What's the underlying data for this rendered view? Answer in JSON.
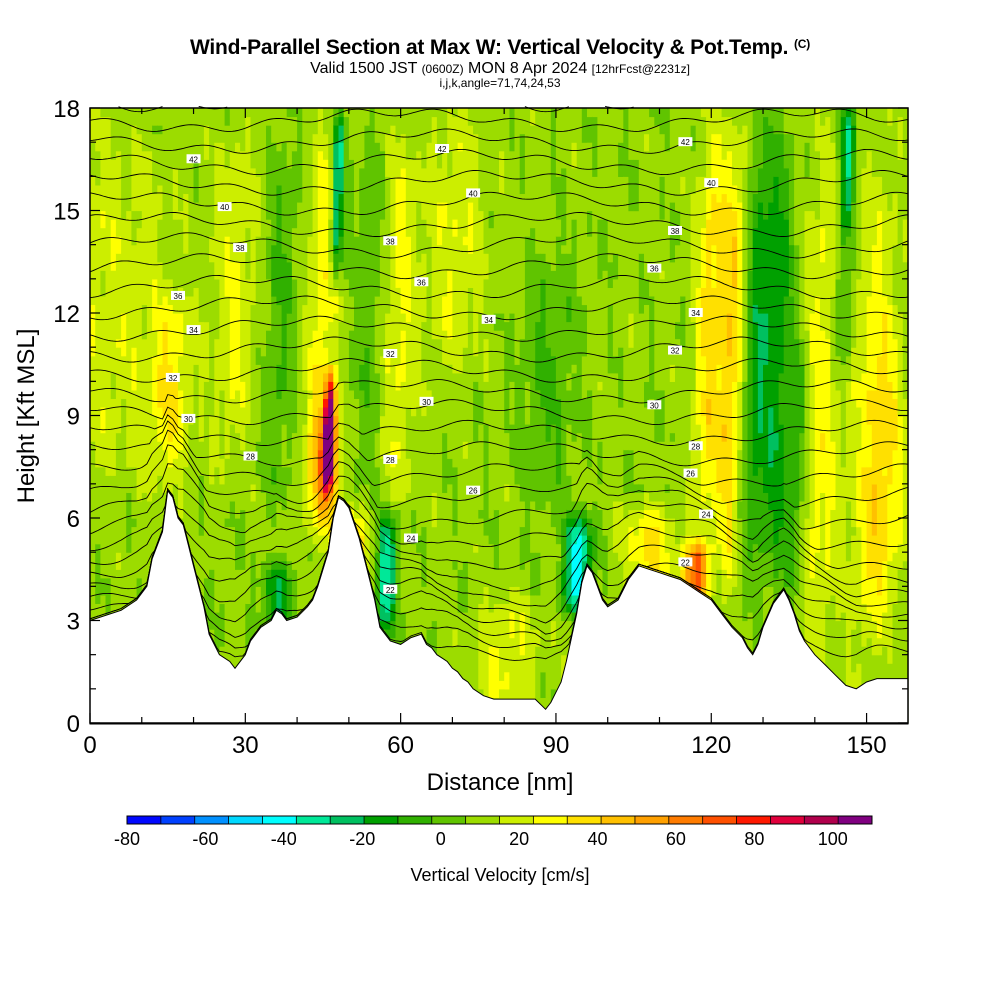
{
  "title": {
    "main": "Wind-Parallel Section at Max W: Vertical Velocity & Pot.Temp.",
    "copyright": "(C)",
    "valid_prefix": "Valid 1500 JST",
    "valid_zulu": "(0600Z)",
    "valid_date": "MON 8 Apr 2024",
    "forecast_note": "[12hrFcst@2231z]",
    "indices": "i,j,k,angle=71,74,24,53"
  },
  "chart_data": {
    "type": "heatmap",
    "xlabel": "Distance [nm]",
    "ylabel": "Height [Kft MSL]",
    "xlim": [
      0,
      158
    ],
    "ylim": [
      0,
      18
    ],
    "xticks": [
      "0",
      "30",
      "60",
      "90",
      "120",
      "150"
    ],
    "yticks": [
      "0",
      "3",
      "6",
      "9",
      "12",
      "15",
      "18"
    ],
    "terrain": {
      "x": [
        0,
        6,
        9,
        11,
        12,
        14,
        15,
        16,
        17,
        18,
        19,
        20,
        21,
        22,
        23,
        25,
        27,
        28,
        30,
        31,
        33,
        35,
        36,
        37,
        38,
        40,
        42,
        43,
        44,
        45,
        46,
        47,
        48,
        49,
        50,
        52,
        53,
        54,
        55,
        56,
        58,
        60,
        62,
        64,
        65,
        66,
        67,
        68,
        69,
        70,
        71,
        72,
        73,
        74,
        76,
        78,
        82,
        86,
        88,
        89,
        90,
        91,
        92,
        93,
        94,
        95,
        96,
        97,
        98,
        99,
        100,
        102,
        103,
        104,
        105,
        106,
        108,
        110,
        112,
        114,
        116,
        118,
        120,
        122,
        124,
        126,
        127,
        128,
        129,
        130,
        132,
        134,
        135,
        136,
        137,
        138,
        140,
        142,
        144,
        146,
        148,
        150,
        152,
        154,
        156,
        158
      ],
      "y": [
        3.0,
        3.3,
        3.6,
        4.0,
        4.8,
        5.6,
        6.8,
        6.6,
        6.0,
        5.8,
        5.2,
        4.6,
        4.0,
        3.4,
        2.6,
        2.0,
        1.8,
        1.6,
        2.0,
        2.4,
        2.8,
        3.0,
        3.3,
        3.2,
        3.0,
        3.1,
        3.4,
        3.6,
        4.0,
        4.5,
        5.0,
        6.0,
        6.6,
        6.5,
        6.3,
        5.4,
        4.8,
        4.2,
        3.6,
        2.8,
        2.4,
        2.3,
        2.5,
        2.6,
        2.3,
        2.2,
        2.0,
        1.9,
        1.8,
        1.6,
        1.5,
        1.3,
        1.2,
        1.0,
        0.8,
        0.7,
        0.7,
        0.7,
        0.4,
        0.6,
        0.9,
        1.2,
        1.8,
        2.5,
        3.2,
        4.1,
        4.6,
        4.4,
        4.0,
        3.6,
        3.4,
        3.6,
        3.9,
        4.2,
        4.4,
        4.6,
        4.5,
        4.4,
        4.3,
        4.2,
        4.0,
        3.8,
        3.6,
        3.2,
        2.8,
        2.5,
        2.2,
        2.0,
        2.3,
        2.8,
        3.5,
        3.9,
        3.6,
        3.2,
        2.7,
        2.4,
        2.0,
        1.7,
        1.4,
        1.1,
        1.0,
        1.2,
        1.3,
        1.3,
        1.3,
        1.3
      ]
    },
    "updrafts": [
      {
        "x": 2,
        "w": 13,
        "vmax": 12,
        "bot": 6.5,
        "top": 18
      },
      {
        "x": 15,
        "w": 4,
        "vmax": 20,
        "bot": 7,
        "top": 12.5
      },
      {
        "x": 27,
        "w": 4,
        "vmax": 14,
        "bot": 7,
        "top": 18
      },
      {
        "x": 46,
        "w": 1.1,
        "vmax": 90,
        "bot": 7,
        "top": 10
      },
      {
        "x": 45,
        "w": 3,
        "vmax": 35,
        "bot": 5.5,
        "top": 9
      },
      {
        "x": 44,
        "w": 3,
        "vmax": 22,
        "bot": 6,
        "top": 18
      },
      {
        "x": 50,
        "w": 3,
        "vmax": 35,
        "bot": 3,
        "top": 6
      },
      {
        "x": 58,
        "w": 4,
        "vmax": 20,
        "bot": 6,
        "top": 18
      },
      {
        "x": 80,
        "w": 6,
        "vmax": 16,
        "bot": 0.5,
        "top": 3.5
      },
      {
        "x": 70,
        "w": 6,
        "vmax": 14,
        "bot": 10,
        "top": 18
      },
      {
        "x": 108,
        "w": 5,
        "vmax": 24,
        "bot": 3.8,
        "top": 6.2
      },
      {
        "x": 117,
        "w": 2.5,
        "vmax": 58,
        "bot": 3.6,
        "top": 5
      },
      {
        "x": 119,
        "w": 3,
        "vmax": 28,
        "bot": 5,
        "top": 18
      },
      {
        "x": 123,
        "w": 2.2,
        "vmax": 28,
        "bot": 3,
        "top": 18
      },
      {
        "x": 140,
        "w": 4,
        "vmax": 18,
        "bot": 0,
        "top": 18
      },
      {
        "x": 150,
        "w": 4,
        "vmax": 16,
        "bot": 0,
        "top": 18
      },
      {
        "x": 153,
        "w": 4,
        "vmax": 18,
        "bot": 3,
        "top": 12
      }
    ],
    "downdrafts": [
      {
        "x": 47.5,
        "w": 1.2,
        "vmax": -45,
        "bot": 13,
        "top": 18
      },
      {
        "x": 57,
        "w": 1.8,
        "vmax": -45,
        "bot": 2.8,
        "top": 6
      },
      {
        "x": 94,
        "w": 2.5,
        "vmax": -55,
        "bot": 3.5,
        "top": 5.8
      },
      {
        "x": 146,
        "w": 1.5,
        "vmax": -40,
        "bot": 14.5,
        "top": 18
      },
      {
        "x": 36,
        "w": 3,
        "vmax": -28,
        "bot": 3,
        "top": 4.3
      },
      {
        "x": 36,
        "w": 3,
        "vmax": -12,
        "bot": 6,
        "top": 18
      },
      {
        "x": 54,
        "w": 4,
        "vmax": -14,
        "bot": 6,
        "top": 18
      },
      {
        "x": 88,
        "w": 5,
        "vmax": -12,
        "bot": 6,
        "top": 14
      },
      {
        "x": 128,
        "w": 3,
        "vmax": -25,
        "bot": 4,
        "top": 18
      },
      {
        "x": 132,
        "w": 2.5,
        "vmax": -22,
        "bot": 3,
        "top": 18
      },
      {
        "x": 136,
        "w": 2,
        "vmax": -18,
        "bot": 3,
        "top": 12
      },
      {
        "x": 145,
        "w": 2,
        "vmax": -20,
        "bot": 10,
        "top": 14.5
      }
    ],
    "isentropes": {
      "levels": [
        22,
        24,
        26,
        28,
        30,
        32,
        34,
        36,
        38,
        40,
        42
      ],
      "labels": [
        {
          "text": "42",
          "x": 20,
          "y": 16.5
        },
        {
          "text": "42",
          "x": 68,
          "y": 16.8
        },
        {
          "text": "42",
          "x": 115,
          "y": 17.0
        },
        {
          "text": "40",
          "x": 26,
          "y": 15.1
        },
        {
          "text": "40",
          "x": 74,
          "y": 15.5
        },
        {
          "text": "40",
          "x": 120,
          "y": 15.8
        },
        {
          "text": "38",
          "x": 29,
          "y": 13.9
        },
        {
          "text": "38",
          "x": 58,
          "y": 14.1
        },
        {
          "text": "38",
          "x": 113,
          "y": 14.4
        },
        {
          "text": "36",
          "x": 17,
          "y": 12.5
        },
        {
          "text": "36",
          "x": 64,
          "y": 12.9
        },
        {
          "text": "36",
          "x": 109,
          "y": 13.3
        },
        {
          "text": "34",
          "x": 20,
          "y": 11.5
        },
        {
          "text": "34",
          "x": 77,
          "y": 11.8
        },
        {
          "text": "34",
          "x": 117,
          "y": 12.0
        },
        {
          "text": "32",
          "x": 16,
          "y": 10.1
        },
        {
          "text": "32",
          "x": 58,
          "y": 10.8
        },
        {
          "text": "32",
          "x": 113,
          "y": 10.9
        },
        {
          "text": "30",
          "x": 19,
          "y": 8.9
        },
        {
          "text": "30",
          "x": 65,
          "y": 9.4
        },
        {
          "text": "30",
          "x": 109,
          "y": 9.3
        },
        {
          "text": "28",
          "x": 31,
          "y": 7.8
        },
        {
          "text": "28",
          "x": 58,
          "y": 7.7
        },
        {
          "text": "28",
          "x": 117,
          "y": 8.1
        },
        {
          "text": "26",
          "x": 74,
          "y": 6.8
        },
        {
          "text": "26",
          "x": 116,
          "y": 7.3
        },
        {
          "text": "24",
          "x": 62,
          "y": 5.4
        },
        {
          "text": "24",
          "x": 119,
          "y": 6.1
        },
        {
          "text": "22",
          "x": 58,
          "y": 3.9
        },
        {
          "text": "22",
          "x": 115,
          "y": 4.7
        }
      ]
    },
    "colorbar": {
      "label": "Vertical Velocity [cm/s]",
      "ticks": [
        "-80",
        "-60",
        "-40",
        "-20",
        "0",
        "20",
        "40",
        "60",
        "80",
        "100"
      ],
      "range": [
        -80,
        110
      ],
      "colors": [
        "#0008ff",
        "#0040ff",
        "#0090ff",
        "#00d8ff",
        "#00ffff",
        "#00e898",
        "#00c060",
        "#00a000",
        "#30b000",
        "#60c400",
        "#9cdc00",
        "#ccee00",
        "#ffff00",
        "#ffe000",
        "#ffc000",
        "#ffa000",
        "#ff7c00",
        "#ff5000",
        "#ff1800",
        "#e0003c",
        "#b0004c",
        "#800080"
      ]
    }
  }
}
